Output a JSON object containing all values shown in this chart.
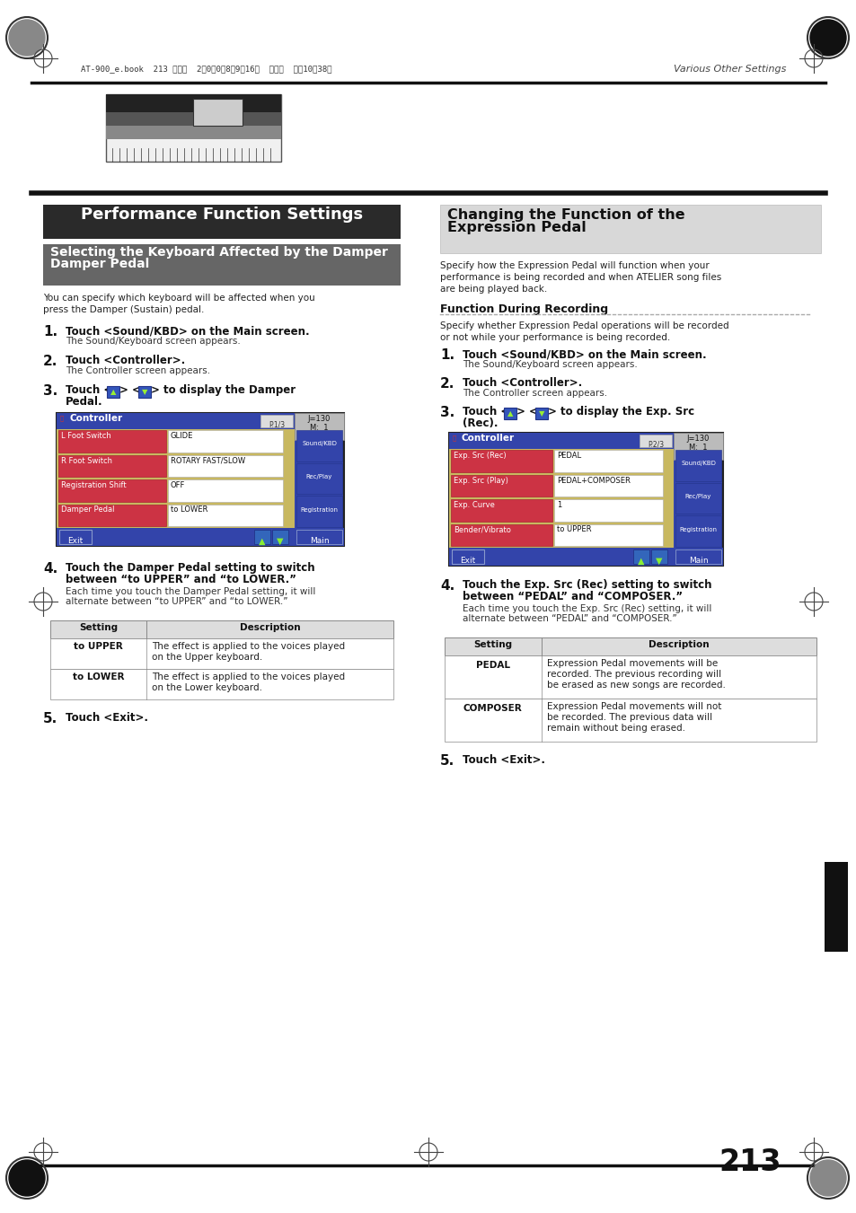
{
  "page_bg": "#ffffff",
  "page_width": 9.54,
  "page_height": 13.51,
  "dpi": 100,
  "header_text": "AT-900_e.book  213 ページ  2　0　0　8年9月16日  火曜日  午前10時38分",
  "header_right": "Various Other Settings",
  "page_number": "213",
  "left_section_title": "Performance Function Settings",
  "left_sub_title": "Selecting the Keyboard Affected by the Damper Pedal",
  "right_section_title_line1": "Changing the Function of the",
  "right_section_title_line2": "Expression Pedal",
  "left_intro": "You can specify which keyboard will be affected when you\npress the Damper (Sustain) pedal.",
  "right_intro": "Specify how the Expression Pedal will function when your\nperformance is being recorded and when ATELIER song files\nare being played back.",
  "right_subsection_title": "Function During Recording",
  "right_subsection_text": "Specify whether Expression Pedal operations will be recorded\nor not while your performance is being recorded.",
  "left_steps": [
    {
      "num": "1",
      "bold": "Touch <Sound/KBD> on the Main screen.",
      "normal": "The Sound/Keyboard screen appears."
    },
    {
      "num": "2",
      "bold": "Touch <Controller>.",
      "normal": "The Controller screen appears."
    },
    {
      "num": "3",
      "bold": "Touch <▲> <▼> to display the Damper",
      "bold2": "Pedal.",
      "normal": ""
    },
    {
      "num": "4",
      "bold": "Touch the Damper Pedal setting to switch",
      "bold2": "between “to UPPER” and “to LOWER.”",
      "normal": "Each time you touch the Damper Pedal setting, it will\nalternate between “to UPPER” and “to LOWER.”"
    },
    {
      "num": "5",
      "bold": "Touch <Exit>.",
      "normal": ""
    }
  ],
  "right_steps": [
    {
      "num": "1",
      "bold": "Touch <Sound/KBD> on the Main screen.",
      "normal": "The Sound/Keyboard screen appears."
    },
    {
      "num": "2",
      "bold": "Touch <Controller>.",
      "normal": "The Controller screen appears."
    },
    {
      "num": "3",
      "bold": "Touch <▲> <▼> to display the Exp. Src",
      "bold2": "(Rec).",
      "normal": ""
    },
    {
      "num": "4",
      "bold": "Touch the Exp. Src (Rec) setting to switch",
      "bold2": "between “PEDAL” and “COMPOSER.”",
      "normal": "Each time you touch the Exp. Src (Rec) setting, it will\nalternate between “PEDAL” and “COMPOSER.”"
    },
    {
      "num": "5",
      "bold": "Touch <Exit>.",
      "normal": ""
    }
  ],
  "left_table": {
    "headers": [
      "Setting",
      "Description"
    ],
    "rows": [
      [
        "to UPPER",
        "The effect is applied to the voices played\non the Upper keyboard."
      ],
      [
        "to LOWER",
        "The effect is applied to the voices played\non the Lower keyboard."
      ]
    ]
  },
  "right_table": {
    "headers": [
      "Setting",
      "Description"
    ],
    "rows": [
      [
        "PEDAL",
        "Expression Pedal movements will be\nrecorded. The previous recording will\nbe erased as new songs are recorded."
      ],
      [
        "COMPOSER",
        "Expression Pedal movements will not\nbe recorded. The previous data will\nremain without being erased."
      ]
    ]
  },
  "sidebar_text": "Various Other Settings",
  "left_screen": {
    "title": "Controller",
    "page": "P.1/3",
    "rows": [
      [
        "L Foot Switch",
        "GLIDE"
      ],
      [
        "R Foot Switch",
        "ROTARY FAST/SLOW"
      ],
      [
        "Registration Shift",
        "OFF"
      ],
      [
        "Damper Pedal",
        "to LOWER"
      ]
    ],
    "side_buttons": [
      "Sound/KBD",
      "Rec/Play",
      "Registration"
    ]
  },
  "right_screen": {
    "title": "Controller",
    "page": "P.2/3",
    "rows": [
      [
        "Exp. Src (Rec)",
        "PEDAL"
      ],
      [
        "Exp. Src (Play)",
        "PEDAL+COMPOSER"
      ],
      [
        "Exp. Curve",
        "1"
      ],
      [
        "Bender/Vibrato",
        "to UPPER"
      ]
    ],
    "side_buttons": [
      "Sound/KBD",
      "Rec/Play",
      "Registration"
    ]
  }
}
